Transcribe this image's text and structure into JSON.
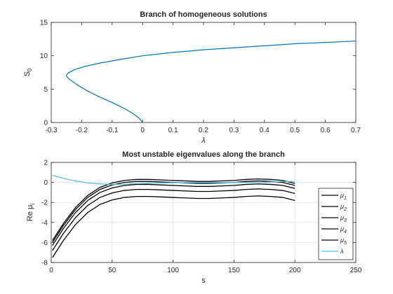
{
  "chart_data": [
    {
      "type": "line",
      "title": "Branch of homogeneous solutions",
      "xlabel": "λ",
      "ylabel_main": "S",
      "ylabel_sub": "0",
      "xlim": [
        -0.3,
        0.7
      ],
      "ylim": [
        0,
        15
      ],
      "xticks": [
        -0.3,
        -0.2,
        -0.1,
        0,
        0.1,
        0.2,
        0.3,
        0.4,
        0.5,
        0.6,
        0.7
      ],
      "xtick_labels": [
        "-0.3",
        "-0.2",
        "-0.1",
        "0",
        "0.1",
        "0.2",
        "0.3",
        "0.4",
        "0.5",
        "0.6",
        "0.7"
      ],
      "yticks": [
        0,
        5,
        10,
        15
      ],
      "ytick_labels": [
        "0",
        "5",
        "10",
        "15"
      ],
      "grid": false,
      "series": [
        {
          "color": "#0072BD",
          "x": [
            0,
            -0.01,
            -0.03,
            -0.06,
            -0.1,
            -0.14,
            -0.18,
            -0.21,
            -0.235,
            -0.248,
            -0.25,
            -0.245,
            -0.225,
            -0.19,
            -0.14,
            -0.08,
            0,
            0.1,
            0.2,
            0.3,
            0.4,
            0.5,
            0.6,
            0.7
          ],
          "y": [
            0,
            0.6,
            1.3,
            2.1,
            3.0,
            3.8,
            4.7,
            5.5,
            6.3,
            6.8,
            7.1,
            7.4,
            7.9,
            8.4,
            8.9,
            9.4,
            10.0,
            10.5,
            10.9,
            11.2,
            11.5,
            11.8,
            12.0,
            12.2
          ]
        }
      ]
    },
    {
      "type": "line",
      "title": "Most unstable eigenvalues along the branch",
      "xlabel": "s",
      "ylabel_main": "Re μ",
      "ylabel_sub": "i",
      "xlim": [
        0,
        250
      ],
      "ylim": [
        -8,
        2
      ],
      "xticks": [
        0,
        50,
        100,
        150,
        200,
        250
      ],
      "xtick_labels": [
        "0",
        "50",
        "100",
        "150",
        "200",
        "250"
      ],
      "yticks": [
        -8,
        -6,
        -4,
        -2,
        0,
        2
      ],
      "ytick_labels": [
        "-8",
        "-6",
        "-4",
        "-2",
        "0",
        "2"
      ],
      "grid": true,
      "legend_position": "bottom-right",
      "x": [
        1,
        10,
        20,
        30,
        40,
        50,
        60,
        70,
        80,
        90,
        100,
        110,
        120,
        130,
        140,
        150,
        160,
        170,
        180,
        190,
        200
      ],
      "series": [
        {
          "name_main": "μ",
          "name_sub": "1",
          "color": "#000000",
          "values": [
            -5.8,
            -4.1,
            -2.5,
            -1.3,
            -0.5,
            -0.05,
            0.2,
            0.3,
            0.3,
            0.25,
            0.2,
            0.15,
            0.1,
            0.1,
            0.15,
            0.2,
            0.3,
            0.35,
            0.3,
            0.2,
            -0.1
          ]
        },
        {
          "name_main": "μ",
          "name_sub": "2",
          "color": "#000000",
          "values": [
            -6.0,
            -4.3,
            -2.7,
            -1.5,
            -0.7,
            -0.25,
            0.0,
            0.1,
            0.1,
            0.05,
            0.0,
            -0.05,
            -0.1,
            -0.1,
            -0.05,
            0.0,
            0.1,
            0.15,
            0.1,
            0.0,
            -0.3
          ]
        },
        {
          "name_main": "μ",
          "name_sub": "3",
          "color": "#000000",
          "values": [
            -6.3,
            -4.6,
            -3.0,
            -1.8,
            -1.0,
            -0.55,
            -0.3,
            -0.2,
            -0.2,
            -0.25,
            -0.3,
            -0.35,
            -0.4,
            -0.4,
            -0.35,
            -0.3,
            -0.2,
            -0.15,
            -0.2,
            -0.3,
            -0.6
          ]
        },
        {
          "name_main": "μ",
          "name_sub": "4",
          "color": "#000000",
          "values": [
            -6.8,
            -5.1,
            -3.5,
            -2.3,
            -1.5,
            -1.05,
            -0.8,
            -0.7,
            -0.7,
            -0.75,
            -0.8,
            -0.85,
            -0.9,
            -0.9,
            -0.85,
            -0.8,
            -0.7,
            -0.65,
            -0.7,
            -0.8,
            -1.1
          ]
        },
        {
          "name_main": "μ",
          "name_sub": "5",
          "color": "#000000",
          "values": [
            -7.5,
            -5.8,
            -4.2,
            -3.0,
            -2.2,
            -1.75,
            -1.5,
            -1.4,
            -1.4,
            -1.45,
            -1.5,
            -1.55,
            -1.6,
            -1.6,
            -1.55,
            -1.5,
            -1.4,
            -1.35,
            -1.4,
            -1.5,
            -1.8
          ]
        },
        {
          "name_main": "λ",
          "name_sub": "",
          "color": "#4DBEEE",
          "values": [
            0.7,
            0.4,
            0.15,
            -0.05,
            -0.15,
            -0.2,
            -0.18,
            -0.12,
            -0.08,
            -0.05,
            -0.03,
            -0.02,
            -0.02,
            -0.02,
            -0.02,
            -0.01,
            0.0,
            0.02,
            0.05,
            0.08,
            0.1
          ]
        }
      ]
    }
  ]
}
